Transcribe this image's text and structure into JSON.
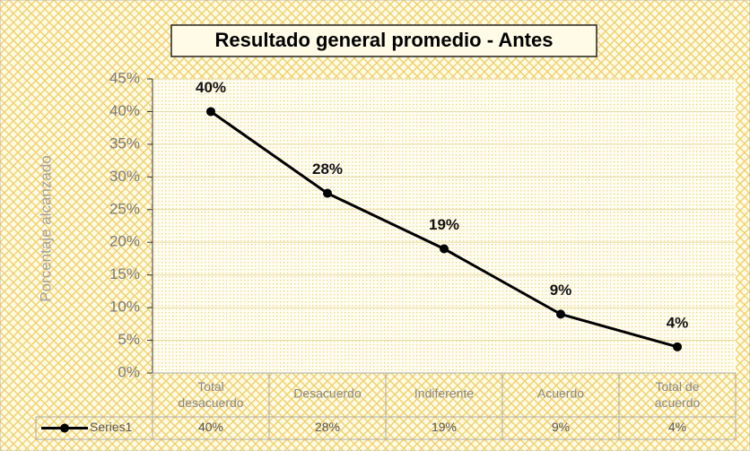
{
  "chart_data": {
    "type": "line",
    "title": "Resultado general promedio - Antes",
    "y_label": "Porcentaje alcanzado",
    "categories": [
      "Total desacuerdo",
      "Desacuerdo",
      "Indiferente",
      "Acuerdo",
      "Total de acuerdo"
    ],
    "series": [
      {
        "name": "Series1",
        "color": "#000000",
        "values": [
          40,
          27.5,
          19,
          9,
          4
        ],
        "value_labels": [
          "40%",
          "28%",
          "19%",
          "9%",
          "4%"
        ]
      }
    ],
    "ylim": [
      0,
      45
    ],
    "yticks": [
      {
        "value": 0,
        "label": "0%"
      },
      {
        "value": 5,
        "label": "5%"
      },
      {
        "value": 10,
        "label": "10%"
      },
      {
        "value": 15,
        "label": "15%"
      },
      {
        "value": 20,
        "label": "20%"
      },
      {
        "value": 25,
        "label": "25%"
      },
      {
        "value": 30,
        "label": "30%"
      },
      {
        "value": 35,
        "label": "35%"
      },
      {
        "value": 40,
        "label": "40%"
      },
      {
        "value": 45,
        "label": "45%"
      }
    ],
    "grid": true
  }
}
